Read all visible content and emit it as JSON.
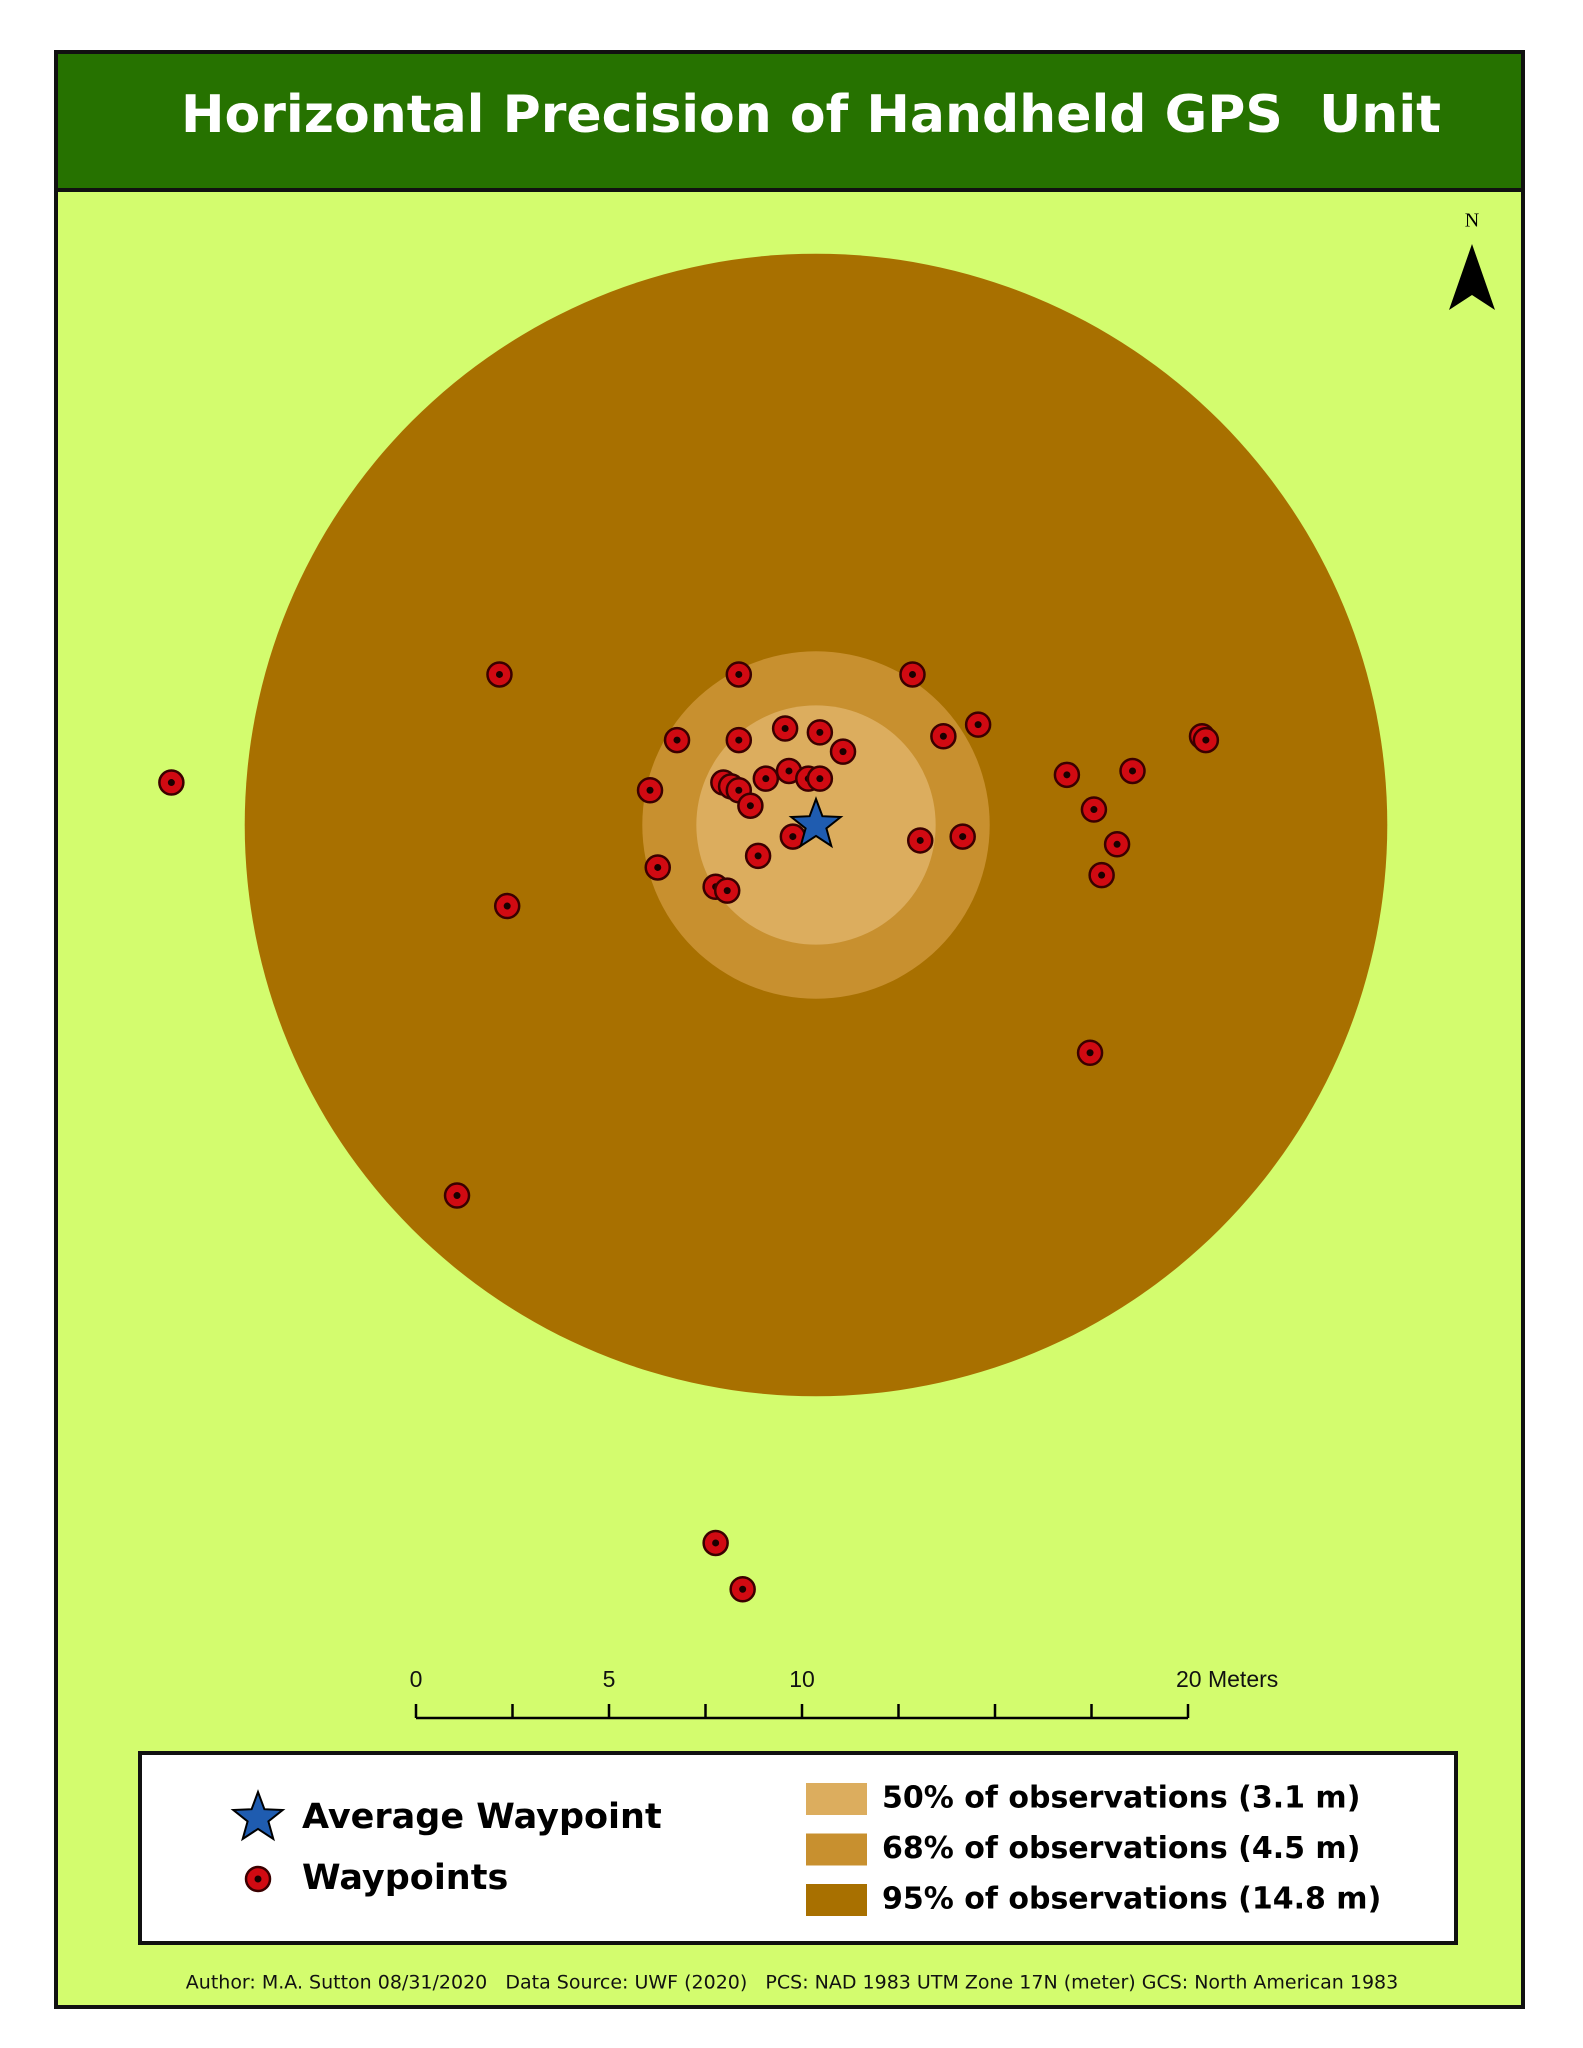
{
  "title": "Horizontal Precision of Handheld GPS  Unit",
  "north_label": "N",
  "rings": [
    {
      "label": "50% of observations (3.1 m)",
      "radius": 3.1,
      "color": "#dcad5e"
    },
    {
      "label": "68% of observations (4.5 m)",
      "radius": 4.5,
      "color": "#c8902f"
    },
    {
      "label": "95% of observations (14.8 m)",
      "radius": 14.8,
      "color": "#a87000"
    }
  ],
  "average_waypoint": {
    "label": "Average Waypoint",
    "color": "#1f5cb0"
  },
  "waypoints": {
    "label": "Waypoints",
    "color": "#d10a12",
    "points": [
      [
        -16.7,
        1.1
      ],
      [
        -8.2,
        3.9
      ],
      [
        -2.0,
        3.9
      ],
      [
        2.5,
        3.9
      ],
      [
        -3.6,
        2.2
      ],
      [
        -2.0,
        2.2
      ],
      [
        -0.8,
        2.5
      ],
      [
        0.1,
        2.4
      ],
      [
        0.7,
        1.9
      ],
      [
        3.3,
        2.3
      ],
      [
        4.2,
        2.6
      ],
      [
        10.0,
        2.3
      ],
      [
        10.1,
        2.2
      ],
      [
        6.5,
        1.3
      ],
      [
        8.2,
        1.4
      ],
      [
        7.2,
        0.4
      ],
      [
        7.8,
        -0.5
      ],
      [
        7.4,
        -1.3
      ],
      [
        -4.3,
        0.9
      ],
      [
        -4.1,
        -1.1
      ],
      [
        -8.0,
        -2.1
      ],
      [
        -2.6,
        -1.6
      ],
      [
        -2.3,
        -1.7
      ],
      [
        -1.5,
        -0.8
      ],
      [
        -0.6,
        -0.3
      ],
      [
        2.7,
        -0.4
      ],
      [
        3.8,
        -0.3
      ],
      [
        -2.4,
        1.1
      ],
      [
        -2.2,
        1.0
      ],
      [
        -2.0,
        0.9
      ],
      [
        -1.7,
        0.5
      ],
      [
        -1.3,
        1.2
      ],
      [
        -0.7,
        1.4
      ],
      [
        -0.2,
        1.2
      ],
      [
        0.1,
        1.2
      ],
      [
        7.1,
        -5.9
      ],
      [
        -9.3,
        -9.6
      ],
      [
        -2.6,
        -18.6
      ],
      [
        -1.9,
        -19.8
      ]
    ]
  },
  "scale_bar": {
    "ticks": [
      0,
      2.5,
      5,
      7.5,
      10,
      12.5,
      15,
      17.5,
      20
    ],
    "labels": [
      0,
      5,
      10,
      {
        "value": 20,
        "label": "20 Meters"
      }
    ]
  },
  "footer": "Author: M.A. Sutton 08/31/2020   Data Source: UWF (2020)   PCS: NAD 1983 UTM Zone 17N (meter) GCS: North American 1983"
}
